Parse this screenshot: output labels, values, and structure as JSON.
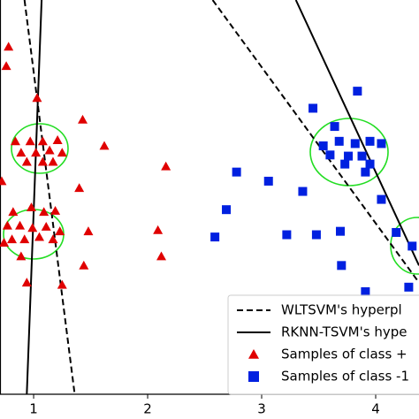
{
  "chart_data": {
    "type": "scatter",
    "xlim": [
      0.705,
      4.38
    ],
    "ylim": [
      0,
      3.46
    ],
    "xticks": [
      1,
      2,
      3,
      4
    ],
    "series": [
      {
        "name": "WLTSVM's hyperpl",
        "kind": "line",
        "dash": true,
        "color": "#000000",
        "x": [
          0.92,
          1.36,
          null,
          2.57,
          4.38
        ],
        "y": [
          3.46,
          0,
          null,
          3.46,
          0.98
        ]
      },
      {
        "name": "RKNN-TSVM's hype",
        "kind": "line",
        "dash": false,
        "color": "#000000",
        "x": [
          1.07,
          0.94,
          null,
          3.3,
          4.38
        ],
        "y": [
          3.46,
          0,
          null,
          3.46,
          1.13
        ]
      },
      {
        "name": "Samples of class +",
        "kind": "triangle",
        "color": "#e00000",
        "x": [
          0.78,
          0.76,
          1.03,
          0.84,
          0.97,
          1.08,
          1.21,
          0.89,
          1.02,
          1.14,
          1.25,
          0.94,
          1.08,
          1.17,
          1.43,
          1.62,
          2.16,
          0.72,
          1.4,
          0.82,
          0.98,
          1.09,
          1.19,
          0.77,
          0.88,
          0.99,
          1.11,
          1.23,
          0.81,
          0.92,
          1.05,
          1.17,
          1.48,
          2.09,
          0.74,
          0.89,
          1.44,
          2.12,
          0.94,
          1.25
        ],
        "y": [
          3.05,
          2.88,
          2.6,
          2.22,
          2.22,
          2.22,
          2.23,
          2.12,
          2.12,
          2.14,
          2.12,
          2.04,
          2.04,
          2.04,
          2.41,
          2.18,
          2.0,
          1.87,
          1.81,
          1.6,
          1.64,
          1.6,
          1.61,
          1.48,
          1.48,
          1.46,
          1.47,
          1.43,
          1.36,
          1.36,
          1.38,
          1.36,
          1.43,
          1.44,
          1.33,
          1.21,
          1.13,
          1.21,
          0.98,
          0.96
        ]
      },
      {
        "name": "Samples of class -1",
        "kind": "square",
        "color": "#0020e0",
        "x": [
          3.84,
          3.45,
          3.64,
          3.54,
          3.68,
          3.82,
          3.95,
          4.05,
          3.6,
          3.76,
          3.88,
          3.73,
          3.95,
          3.91,
          2.78,
          3.36,
          3.06,
          2.69,
          2.59,
          3.22,
          3.48,
          3.69,
          3.7,
          3.91,
          4.05,
          4.18,
          4.32,
          4.29
        ],
        "y": [
          2.66,
          2.51,
          2.35,
          2.18,
          2.22,
          2.2,
          2.22,
          2.2,
          2.1,
          2.09,
          2.09,
          2.02,
          2.02,
          1.95,
          1.95,
          1.78,
          1.87,
          1.62,
          1.38,
          1.4,
          1.4,
          1.43,
          1.13,
          0.9,
          1.71,
          1.42,
          1.3,
          0.94
        ]
      }
    ]
  }
}
